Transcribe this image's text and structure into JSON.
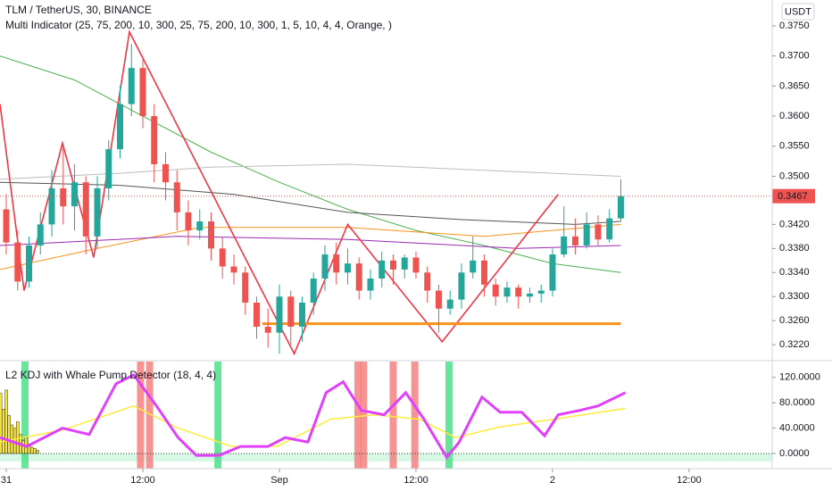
{
  "chart_data": [
    {
      "type": "candlestick",
      "title": "TLM / TetherUS, 30, BINANCE",
      "subtitle": "Multi Indicator  (25, 75, 200, 10, 300, 25, 75, 200, 10, 300, 1, 5, 10, 4, 4, Orange, )",
      "currency": "USDT",
      "last_price": 0.3467,
      "up_color": "#26a69a",
      "down_color": "#ef5350",
      "xlim": [
        -0.55,
        67.3
      ],
      "ylim": [
        0.3195,
        0.3793
      ],
      "yticks": [
        {
          "value": 0.375,
          "label": "0.3750"
        },
        {
          "value": 0.37,
          "label": "0.3700"
        },
        {
          "value": 0.365,
          "label": "0.3650"
        },
        {
          "value": 0.36,
          "label": "0.3600"
        },
        {
          "value": 0.355,
          "label": "0.3550"
        },
        {
          "value": 0.35,
          "label": "0.3500"
        },
        {
          "value": 0.342,
          "label": "0.3420"
        },
        {
          "value": 0.338,
          "label": "0.3380"
        },
        {
          "value": 0.334,
          "label": "0.3340"
        },
        {
          "value": 0.33,
          "label": "0.3300"
        },
        {
          "value": 0.326,
          "label": "0.3260"
        },
        {
          "value": 0.322,
          "label": "0.3220"
        }
      ],
      "x": [
        0,
        1,
        2,
        3,
        4,
        5,
        6,
        7,
        8,
        9,
        10,
        11,
        12,
        13,
        14,
        15,
        16,
        17,
        18,
        19,
        20,
        21,
        22,
        23,
        24,
        25,
        26,
        27,
        28,
        29,
        30,
        31,
        32,
        33,
        34,
        35,
        36,
        37,
        38,
        39,
        40,
        41,
        42,
        43,
        44,
        45,
        46,
        47,
        48,
        49,
        50,
        51,
        52,
        53,
        54
      ],
      "open": [
        0.3445,
        0.339,
        0.3325,
        0.3385,
        0.342,
        0.348,
        0.345,
        0.349,
        0.34,
        0.348,
        0.3545,
        0.362,
        0.368,
        0.36,
        0.352,
        0.349,
        0.344,
        0.341,
        0.3425,
        0.338,
        0.335,
        0.334,
        0.329,
        0.325,
        0.324,
        0.33,
        0.325,
        0.329,
        0.333,
        0.337,
        0.334,
        0.3355,
        0.331,
        0.333,
        0.336,
        0.3345,
        0.3365,
        0.334,
        0.331,
        0.328,
        0.3295,
        0.334,
        0.336,
        0.332,
        0.33,
        0.3315,
        0.33,
        0.3305,
        0.331,
        0.337,
        0.34,
        0.3385,
        0.342,
        0.3395,
        0.343
      ],
      "high": [
        0.347,
        0.341,
        0.34,
        0.344,
        0.351,
        0.355,
        0.352,
        0.35,
        0.35,
        0.356,
        0.365,
        0.372,
        0.37,
        0.362,
        0.354,
        0.351,
        0.346,
        0.3445,
        0.344,
        0.34,
        0.337,
        0.335,
        0.33,
        0.328,
        0.332,
        0.331,
        0.33,
        0.334,
        0.3385,
        0.339,
        0.338,
        0.3365,
        0.3345,
        0.3375,
        0.337,
        0.337,
        0.3375,
        0.335,
        0.332,
        0.331,
        0.3355,
        0.34,
        0.337,
        0.333,
        0.3325,
        0.332,
        0.3315,
        0.332,
        0.338,
        0.345,
        0.343,
        0.344,
        0.3435,
        0.3445,
        0.3495
      ],
      "low": [
        0.337,
        0.331,
        0.3315,
        0.337,
        0.34,
        0.342,
        0.341,
        0.337,
        0.338,
        0.346,
        0.353,
        0.36,
        0.358,
        0.349,
        0.346,
        0.341,
        0.3385,
        0.3395,
        0.336,
        0.333,
        0.332,
        0.327,
        0.323,
        0.3215,
        0.3205,
        0.322,
        0.3225,
        0.327,
        0.331,
        0.332,
        0.332,
        0.3295,
        0.3295,
        0.3315,
        0.332,
        0.333,
        0.333,
        0.329,
        0.324,
        0.327,
        0.328,
        0.333,
        0.33,
        0.3285,
        0.329,
        0.328,
        0.329,
        0.329,
        0.33,
        0.3365,
        0.337,
        0.338,
        0.3385,
        0.339,
        0.3425
      ],
      "close": [
        0.339,
        0.3325,
        0.3385,
        0.342,
        0.348,
        0.345,
        0.349,
        0.34,
        0.348,
        0.3545,
        0.362,
        0.368,
        0.36,
        0.352,
        0.349,
        0.344,
        0.341,
        0.3425,
        0.338,
        0.335,
        0.334,
        0.329,
        0.325,
        0.324,
        0.33,
        0.325,
        0.329,
        0.333,
        0.337,
        0.334,
        0.3355,
        0.331,
        0.333,
        0.336,
        0.3345,
        0.3365,
        0.334,
        0.331,
        0.328,
        0.3295,
        0.334,
        0.336,
        0.332,
        0.33,
        0.3315,
        0.33,
        0.3305,
        0.331,
        0.337,
        0.34,
        0.3385,
        0.342,
        0.3395,
        0.343,
        0.3467
      ],
      "lines": [
        {
          "color": "#4caf50",
          "x": [
            -0.55,
            6,
            12,
            18,
            24,
            30,
            36,
            42,
            48,
            54
          ],
          "values": [
            0.37,
            0.366,
            0.36,
            0.354,
            0.349,
            0.3445,
            0.341,
            0.3385,
            0.3355,
            0.334
          ]
        },
        {
          "color": "#bdbdbd",
          "x": [
            -0.55,
            10,
            18,
            30,
            42,
            54
          ],
          "values": [
            0.3495,
            0.3505,
            0.3515,
            0.352,
            0.351,
            0.35
          ]
        },
        {
          "color": "#555555",
          "x": [
            -0.55,
            10,
            20,
            30,
            40,
            50,
            54
          ],
          "values": [
            0.349,
            0.3485,
            0.347,
            0.344,
            0.3428,
            0.342,
            0.3425
          ]
        },
        {
          "color": "#f7931a",
          "x": [
            -0.55,
            8,
            17,
            30,
            42,
            54
          ],
          "values": [
            0.3345,
            0.338,
            0.3415,
            0.3415,
            0.34,
            0.342
          ]
        },
        {
          "color": "#9c27b0",
          "x": [
            -0.55,
            15,
            30,
            45,
            54
          ],
          "values": [
            0.3385,
            0.34,
            0.3395,
            0.338,
            0.3385
          ]
        },
        {
          "color": "#f23645",
          "x": [
            -0.55,
            1.57,
            4.94,
            7.69,
            10.82,
            25.3,
            30,
            38.3,
            48.5
          ],
          "values": [
            0.362,
            0.331,
            0.3555,
            0.3365,
            0.374,
            0.3205,
            0.342,
            0.3225,
            0.347
          ]
        }
      ],
      "support": {
        "color": "#f7931a",
        "x": [
          22.5,
          54
        ],
        "value": 0.3255
      }
    },
    {
      "type": "oscillator",
      "title": "L2 KDJ with Whale Pump Detector (18, 4, 4)",
      "xlim": [
        -0.55,
        67.3
      ],
      "ylim": [
        -24,
        145
      ],
      "yticks": [
        {
          "value": 120,
          "label": "120.0000"
        },
        {
          "value": 80,
          "label": "80.0000"
        },
        {
          "value": 40,
          "label": "40.0000"
        },
        {
          "value": 0,
          "label": "0.0000"
        }
      ],
      "xticks": [
        {
          "value": 0,
          "label": "31"
        },
        {
          "value": 12,
          "label": "12:00"
        },
        {
          "value": 24,
          "label": "Sep"
        },
        {
          "value": 36,
          "label": "12:00"
        },
        {
          "value": 48,
          "label": "2"
        },
        {
          "value": 60,
          "label": "12:00"
        }
      ],
      "series": [
        {
          "color": "#e040fb",
          "x": [
            -0.55,
            1.8,
            4.94,
            7.29,
            9.65,
            11.2,
            13.2,
            15.1,
            16.7,
            18.7,
            20.6,
            23,
            24.5,
            26.5,
            28.1,
            29.6,
            31.2,
            33.2,
            35.1,
            36.7,
            38.7,
            39.8,
            41.8,
            43.4,
            45.3,
            47.3,
            48.5,
            50.4,
            52,
            53.6,
            54.4
          ],
          "values": [
            25,
            11,
            40,
            30,
            110,
            124,
            75,
            25,
            -3,
            -3,
            11,
            11,
            25,
            18,
            96,
            113,
            68,
            61,
            96,
            54,
            -6,
            18,
            89,
            65,
            65,
            28,
            61,
            68,
            75,
            89,
            96
          ]
        },
        {
          "color": "#ffeb3b",
          "x": [
            -0.55,
            4.94,
            11.2,
            15.1,
            19.8,
            23.8,
            28.5,
            32.4,
            36.3,
            39.5,
            43.4,
            48.1,
            54.4
          ],
          "values": [
            18,
            37,
            75,
            40,
            11,
            11,
            54,
            61,
            54,
            25,
            42,
            54,
            71
          ]
        }
      ],
      "signals": [
        {
          "x": 1.65,
          "color": "#4ee08a"
        },
        {
          "x": 11.8,
          "color": "#f48080"
        },
        {
          "x": 12.6,
          "color": "#f48080"
        },
        {
          "x": 18.6,
          "color": "#4ee08a"
        },
        {
          "x": 30.9,
          "color": "#f48080"
        },
        {
          "x": 31.4,
          "color": "#f48080"
        },
        {
          "x": 34.0,
          "color": "#f48080"
        },
        {
          "x": 35.9,
          "color": "#f48080"
        },
        {
          "x": 38.9,
          "color": "#4ee08a"
        }
      ],
      "whale_bars": {
        "color": "#f5e642",
        "x": [
          -0.5,
          -0.25,
          0,
          0.25,
          0.5,
          0.75,
          1,
          1.25,
          1.5,
          1.75,
          2,
          2.25,
          2.5,
          2.75
        ],
        "values": [
          95,
          70,
          100,
          60,
          45,
          40,
          50,
          30,
          20,
          25,
          15,
          10,
          8,
          5
        ]
      }
    }
  ]
}
